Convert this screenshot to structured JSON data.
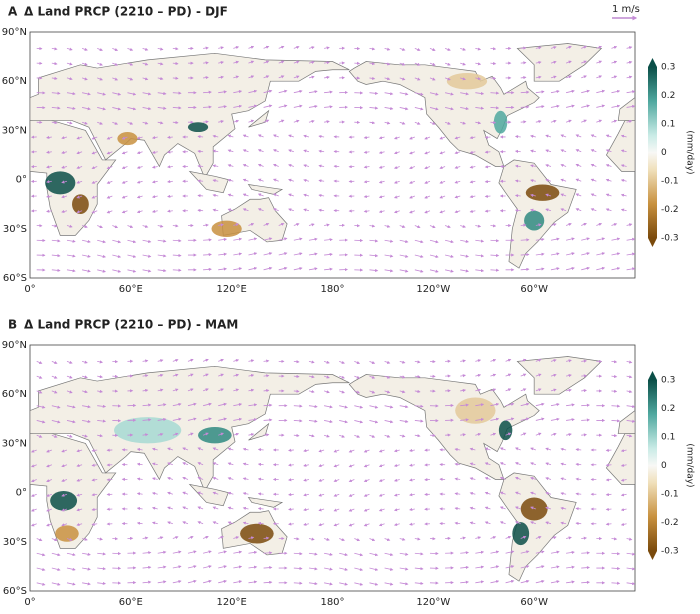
{
  "scale_label": "1 m/s",
  "panels": [
    {
      "letter": "A",
      "title": "Δ Land PRCP (2210 – PD) - DJF",
      "lat_labels": [
        "90°N",
        "60°N",
        "30°N",
        "0°",
        "30°S",
        "60°S"
      ],
      "lon_labels": [
        "0°",
        "60°E",
        "120°E",
        "180°",
        "120°W",
        "60°W"
      ],
      "colorbar": {
        "label": "(mm/day)",
        "ticks": [
          "0.3",
          "0.2",
          "0.1",
          "0",
          "-0.1",
          "-0.2",
          "-0.3"
        ]
      }
    },
    {
      "letter": "B",
      "title": "Δ Land PRCP (2210 – PD) - MAM",
      "lat_labels": [
        "90°N",
        "60°N",
        "30°N",
        "0°",
        "30°S",
        "60°S"
      ],
      "lon_labels": [
        "0°",
        "60°E",
        "120°E",
        "180°",
        "120°W",
        "60°W"
      ],
      "colorbar": {
        "label": "(mm/day)",
        "ticks": [
          "0.3",
          "0.2",
          "0.1",
          "0",
          "-0.1",
          "-0.2",
          "-0.3"
        ]
      }
    }
  ]
}
